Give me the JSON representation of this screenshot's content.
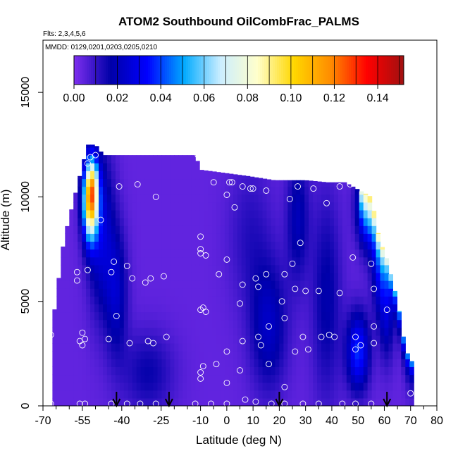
{
  "chart_data": {
    "type": "heatmap",
    "title": "ATOM2 Southbound OilCombFrac_PALMS",
    "notes": [
      "Flts: 2,3,4,5,6",
      "MMDD: 0129,0201,0203,0205,0210"
    ],
    "xlabel": "Latitude (deg N)",
    "ylabel": "Altitude (m)",
    "xlim": [
      -70,
      80
    ],
    "ylim": [
      0,
      17500
    ],
    "x_ticks": [
      -70,
      -55,
      -40,
      -25,
      -10,
      0,
      10,
      20,
      30,
      40,
      50,
      60,
      70,
      80
    ],
    "x_tick_labels": [
      "-70",
      "-55",
      "-40",
      "-25",
      "-10",
      "0",
      "10",
      "20",
      "30",
      "40",
      "50",
      "60",
      "70",
      "80"
    ],
    "y_ticks": [
      0,
      5000,
      10000,
      15000
    ],
    "y_tick_labels": [
      "0",
      "5000",
      "10000",
      "15000"
    ],
    "colorbar": {
      "min": 0,
      "max": 0.152,
      "ticks": [
        0.0,
        0.02,
        0.04,
        0.06,
        0.08,
        0.1,
        0.12,
        0.14
      ],
      "tick_labels": [
        "0.00",
        "0.02",
        "0.04",
        "0.06",
        "0.08",
        "0.10",
        "0.12",
        "0.14"
      ],
      "colors": [
        "#7f2ff0",
        "#0000a8",
        "#0000ff",
        "#00aaff",
        "#cceeff",
        "#ffffcc",
        "#ffd700",
        "#ff8c00",
        "#ff0000",
        "#a01010"
      ]
    },
    "grid": false,
    "arrows_at_latitude": [
      -42,
      -22,
      20,
      61
    ],
    "profile_points": [
      {
        "lat": -67,
        "alt": 3400
      },
      {
        "lat": -67,
        "alt": 100
      },
      {
        "lat": -57,
        "alt": 6400
      },
      {
        "lat": -57,
        "alt": 6000
      },
      {
        "lat": -56,
        "alt": 3100
      },
      {
        "lat": -55,
        "alt": 3500
      },
      {
        "lat": -55,
        "alt": 2900
      },
      {
        "lat": -54,
        "alt": 3200
      },
      {
        "lat": -56,
        "alt": 100
      },
      {
        "lat": -54,
        "alt": 100
      },
      {
        "lat": -53,
        "alt": 6500
      },
      {
        "lat": -53,
        "alt": 11600
      },
      {
        "lat": -52,
        "alt": 11900
      },
      {
        "lat": -50,
        "alt": 12000
      },
      {
        "lat": -48,
        "alt": 8900
      },
      {
        "lat": -45,
        "alt": 3200
      },
      {
        "lat": -45,
        "alt": 12200
      },
      {
        "lat": -44,
        "alt": 6400
      },
      {
        "lat": -43,
        "alt": 6900
      },
      {
        "lat": -42,
        "alt": 4300
      },
      {
        "lat": -41,
        "alt": 10500
      },
      {
        "lat": -44,
        "alt": 100
      },
      {
        "lat": -38,
        "alt": 6700
      },
      {
        "lat": -37,
        "alt": 3000
      },
      {
        "lat": -36,
        "alt": 6100
      },
      {
        "lat": -34,
        "alt": 10600
      },
      {
        "lat": -31,
        "alt": 5900
      },
      {
        "lat": -30,
        "alt": 3100
      },
      {
        "lat": -29,
        "alt": 6100
      },
      {
        "lat": -28,
        "alt": 3000
      },
      {
        "lat": -27,
        "alt": 10000
      },
      {
        "lat": -24,
        "alt": 6200
      },
      {
        "lat": -23,
        "alt": 3300
      },
      {
        "lat": -38,
        "alt": 100
      },
      {
        "lat": -33,
        "alt": 100
      },
      {
        "lat": -27,
        "alt": 100
      },
      {
        "lat": -11,
        "alt": 12000
      },
      {
        "lat": -10,
        "alt": 8100
      },
      {
        "lat": -10,
        "alt": 7500
      },
      {
        "lat": -10,
        "alt": 7300
      },
      {
        "lat": -10,
        "alt": 4600
      },
      {
        "lat": -9,
        "alt": 4700
      },
      {
        "lat": -8,
        "alt": 4500
      },
      {
        "lat": -8,
        "alt": 7200
      },
      {
        "lat": -9,
        "alt": 1900
      },
      {
        "lat": -10,
        "alt": 1600
      },
      {
        "lat": -10,
        "alt": 1300
      },
      {
        "lat": -5,
        "alt": 10700
      },
      {
        "lat": -4,
        "alt": 2000
      },
      {
        "lat": -3,
        "alt": 6300
      },
      {
        "lat": -12,
        "alt": 100
      },
      {
        "lat": -6,
        "alt": 100
      },
      {
        "lat": 0,
        "alt": 10100
      },
      {
        "lat": 0,
        "alt": 7000
      },
      {
        "lat": 0,
        "alt": 2600
      },
      {
        "lat": 0,
        "alt": 1100
      },
      {
        "lat": 1,
        "alt": 10700
      },
      {
        "lat": 2,
        "alt": 10700
      },
      {
        "lat": 3,
        "alt": 9500
      },
      {
        "lat": 5,
        "alt": 4900
      },
      {
        "lat": 5,
        "alt": 1700
      },
      {
        "lat": 6,
        "alt": 10500
      },
      {
        "lat": 6,
        "alt": 5800
      },
      {
        "lat": 6,
        "alt": 3100
      },
      {
        "lat": 7,
        "alt": 300
      },
      {
        "lat": 0,
        "alt": 100
      },
      {
        "lat": 9,
        "alt": 10400
      },
      {
        "lat": 10,
        "alt": 10400
      },
      {
        "lat": 11,
        "alt": 6100
      },
      {
        "lat": 12,
        "alt": 5700
      },
      {
        "lat": 12,
        "alt": 3300
      },
      {
        "lat": 13,
        "alt": 2900
      },
      {
        "lat": 15,
        "alt": 10300
      },
      {
        "lat": 15,
        "alt": 6300
      },
      {
        "lat": 16,
        "alt": 3800
      },
      {
        "lat": 16,
        "alt": 2000
      },
      {
        "lat": 11,
        "alt": 200
      },
      {
        "lat": 17,
        "alt": 100
      },
      {
        "lat": 21,
        "alt": 5000
      },
      {
        "lat": 22,
        "alt": 6300
      },
      {
        "lat": 22,
        "alt": 4200
      },
      {
        "lat": 22,
        "alt": 900
      },
      {
        "lat": 24,
        "alt": 9900
      },
      {
        "lat": 25,
        "alt": 6800
      },
      {
        "lat": 26,
        "alt": 5600
      },
      {
        "lat": 26,
        "alt": 2600
      },
      {
        "lat": 27,
        "alt": 10500
      },
      {
        "lat": 28,
        "alt": 7800
      },
      {
        "lat": 29,
        "alt": 3300
      },
      {
        "lat": 30,
        "alt": 5500
      },
      {
        "lat": 31,
        "alt": 2700
      },
      {
        "lat": 22,
        "alt": 100
      },
      {
        "lat": 29,
        "alt": 100
      },
      {
        "lat": 33,
        "alt": 10400
      },
      {
        "lat": 35,
        "alt": 5500
      },
      {
        "lat": 36,
        "alt": 3300
      },
      {
        "lat": 38,
        "alt": 9700
      },
      {
        "lat": 39,
        "alt": 3400
      },
      {
        "lat": 41,
        "alt": 3300
      },
      {
        "lat": 43,
        "alt": 10500
      },
      {
        "lat": 43,
        "alt": 5400
      },
      {
        "lat": 47,
        "alt": 10600
      },
      {
        "lat": 48,
        "alt": 7100
      },
      {
        "lat": 49,
        "alt": 3300
      },
      {
        "lat": 49,
        "alt": 2700
      },
      {
        "lat": 51,
        "alt": 2900
      },
      {
        "lat": 35,
        "alt": 100
      },
      {
        "lat": 44,
        "alt": 100
      },
      {
        "lat": 49,
        "alt": 100
      },
      {
        "lat": 55,
        "alt": 6800
      },
      {
        "lat": 56,
        "alt": 5600
      },
      {
        "lat": 56,
        "alt": 3800
      },
      {
        "lat": 56,
        "alt": 3000
      },
      {
        "lat": 61,
        "alt": 4600
      },
      {
        "lat": 70,
        "alt": 600
      },
      {
        "lat": 55,
        "alt": 100
      }
    ]
  }
}
